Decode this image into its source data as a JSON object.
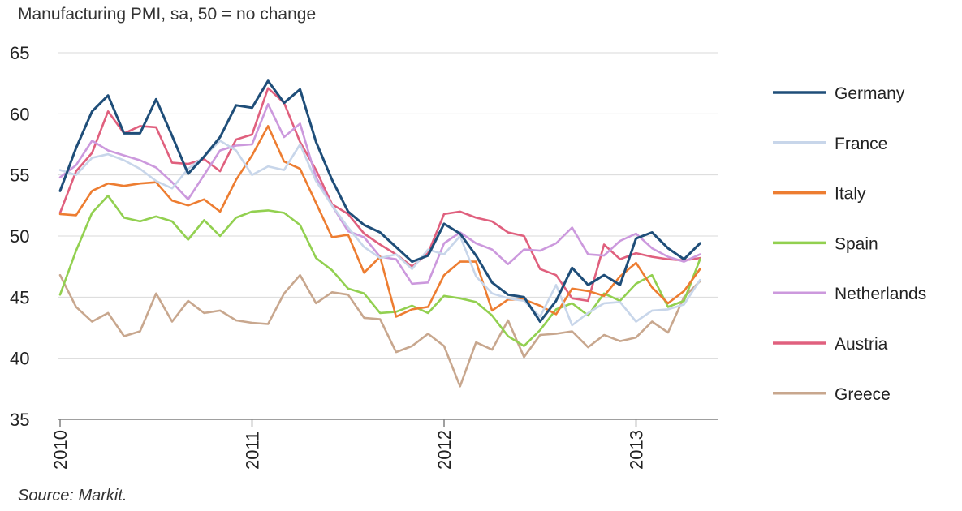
{
  "chart_data": {
    "type": "line",
    "subtitle": "Manufacturing PMI, sa, 50 = no change",
    "source": "Source: Markit.",
    "ylim": [
      35,
      65
    ],
    "y_ticks": [
      35,
      40,
      45,
      50,
      55,
      60,
      65
    ],
    "x_start": "2010-01",
    "x_end": "2013-05",
    "x_ticks": [
      "2010",
      "2011",
      "2012",
      "2013"
    ],
    "grid": true,
    "legend_position": "right",
    "series": [
      {
        "name": "Germany",
        "color": "#1f4e79",
        "values": [
          53.7,
          57.2,
          60.2,
          61.5,
          58.4,
          58.4,
          61.2,
          58.2,
          55.1,
          56.5,
          58.1,
          60.7,
          60.5,
          62.7,
          60.9,
          62.0,
          57.7,
          54.6,
          52.0,
          50.9,
          50.3,
          49.1,
          47.9,
          48.4,
          51.0,
          50.2,
          48.4,
          46.2,
          45.2,
          45.0,
          43.0,
          44.7,
          47.4,
          46.0,
          46.8,
          46.0,
          49.8,
          50.3,
          49.0,
          48.1,
          49.4
        ]
      },
      {
        "name": "France",
        "color": "#c8d6ea",
        "values": [
          55.4,
          55.0,
          56.4,
          56.7,
          56.2,
          55.5,
          54.5,
          53.9,
          55.5,
          56.5,
          57.8,
          57.0,
          55.0,
          55.7,
          55.4,
          57.5,
          54.5,
          52.5,
          50.7,
          49.1,
          48.2,
          48.5,
          47.3,
          48.9,
          48.5,
          50.0,
          46.7,
          45.3,
          44.9,
          44.7,
          43.4,
          46.0,
          42.7,
          43.7,
          44.5,
          44.6,
          43.0,
          43.9,
          44.0,
          44.4,
          46.4
        ]
      },
      {
        "name": "Italy",
        "color": "#ed7d31",
        "values": [
          51.8,
          51.7,
          53.7,
          54.3,
          54.1,
          54.3,
          54.4,
          52.9,
          52.5,
          53.0,
          52.0,
          54.6,
          56.6,
          59.0,
          56.1,
          55.5,
          52.7,
          49.9,
          50.1,
          47.0,
          48.3,
          43.4,
          44.0,
          44.2,
          46.8,
          47.9,
          47.9,
          43.9,
          44.8,
          44.8,
          44.3,
          43.6,
          45.7,
          45.5,
          45.1,
          46.7,
          47.8,
          45.8,
          44.5,
          45.5,
          47.3
        ]
      },
      {
        "name": "Spain",
        "color": "#92d050",
        "values": [
          45.2,
          48.8,
          51.9,
          53.3,
          51.5,
          51.2,
          51.6,
          51.2,
          49.7,
          51.3,
          50.0,
          51.5,
          52.0,
          52.1,
          51.9,
          50.9,
          48.2,
          47.2,
          45.7,
          45.3,
          43.7,
          43.8,
          44.3,
          43.7,
          45.1,
          44.9,
          44.6,
          43.5,
          41.8,
          41.0,
          42.3,
          44.0,
          44.5,
          43.5,
          45.3,
          44.7,
          46.1,
          46.8,
          44.2,
          44.7,
          48.1
        ]
      },
      {
        "name": "Netherlands",
        "color": "#cc99dd",
        "values": [
          54.8,
          55.8,
          57.8,
          57.0,
          56.6,
          56.2,
          55.6,
          54.4,
          53.0,
          55.0,
          57.0,
          57.4,
          57.5,
          60.8,
          58.1,
          59.2,
          54.8,
          52.5,
          50.4,
          49.9,
          48.3,
          48.1,
          46.1,
          46.2,
          49.4,
          50.3,
          49.4,
          48.9,
          47.7,
          48.9,
          48.8,
          49.4,
          50.7,
          48.5,
          48.4,
          49.6,
          50.2,
          49.0,
          48.3,
          47.9,
          48.5
        ]
      },
      {
        "name": "Austria",
        "color": "#e0607e",
        "values": [
          51.9,
          55.3,
          56.8,
          60.2,
          58.4,
          59.0,
          58.9,
          56.0,
          55.9,
          56.3,
          55.3,
          57.9,
          58.3,
          62.1,
          60.9,
          57.7,
          55.4,
          52.6,
          51.8,
          50.2,
          49.3,
          48.5,
          47.5,
          48.6,
          51.8,
          52.0,
          51.5,
          51.2,
          50.3,
          50.0,
          47.3,
          46.8,
          44.9,
          44.7,
          49.3,
          48.1,
          48.6,
          48.3,
          48.1,
          48.0,
          48.2
        ]
      },
      {
        "name": "Greece",
        "color": "#c8a78e",
        "values": [
          46.8,
          44.2,
          43.0,
          43.7,
          41.8,
          42.2,
          45.3,
          43.0,
          44.7,
          43.7,
          43.9,
          43.1,
          42.9,
          42.8,
          45.3,
          46.8,
          44.5,
          45.4,
          45.2,
          43.3,
          43.2,
          40.5,
          41.0,
          42.0,
          41.0,
          37.7,
          41.3,
          40.7,
          43.1,
          40.1,
          41.9,
          42.0,
          42.2,
          40.9,
          41.9,
          41.4,
          41.7,
          43.0,
          42.1,
          45.0,
          46.3
        ]
      }
    ]
  }
}
